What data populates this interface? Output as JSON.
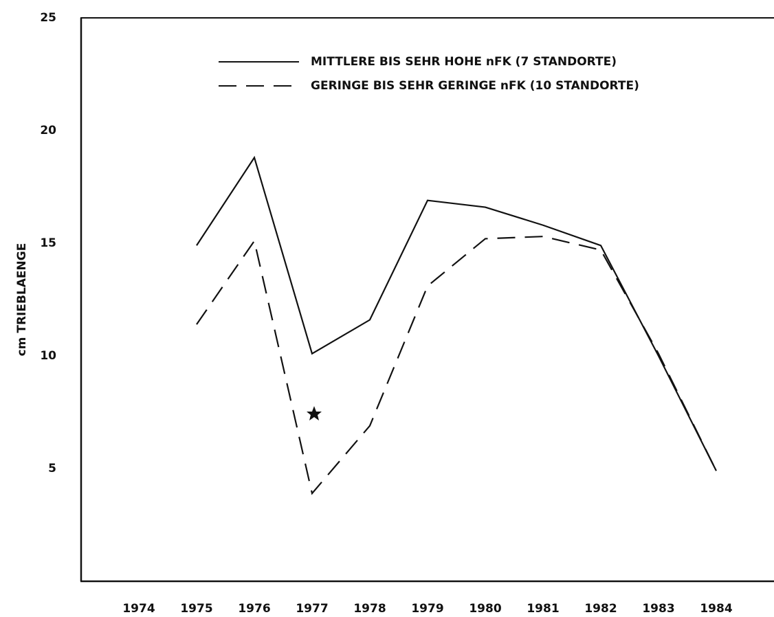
{
  "chart_data": {
    "type": "line",
    "y_label": "cm TRIEBLAENGE",
    "x": [
      1975,
      1976,
      1977,
      1978,
      1979,
      1980,
      1981,
      1982,
      1983,
      1984
    ],
    "series": [
      {
        "name": "MITTLERE BIS SEHR HOHE nFK  (7 STANDORTE)",
        "color": "#111111",
        "linestyle": "solid",
        "values": [
          14.9,
          18.8,
          10.1,
          11.6,
          16.9,
          16.6,
          15.8,
          14.9,
          10.0,
          4.9
        ]
      },
      {
        "name": "GERINGE BIS SEHR GERINGE nFK  (10 STANDORTE)",
        "color": "#111111",
        "linestyle": "dashed",
        "values": [
          11.4,
          15.1,
          3.9,
          6.9,
          13.1,
          15.2,
          15.3,
          14.7,
          10.1,
          4.9
        ]
      }
    ],
    "xlim": [
      1973,
      1985
    ],
    "xticks": [
      1974,
      1975,
      1976,
      1977,
      1978,
      1979,
      1980,
      1981,
      1982,
      1983,
      1984
    ],
    "ylim": [
      0,
      25
    ],
    "yticks": [
      5,
      10,
      15,
      20,
      25
    ],
    "legend": "top"
  }
}
